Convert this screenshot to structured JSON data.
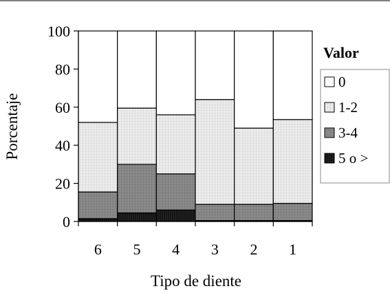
{
  "chart_data": {
    "type": "bar",
    "stacked": true,
    "title": "",
    "xlabel": "Tipo de diente",
    "ylabel": "Porcentaje",
    "categories": [
      "6",
      "5",
      "4",
      "3",
      "2",
      "1"
    ],
    "ylim": [
      0,
      100
    ],
    "yticks": [
      "0",
      "20",
      "40",
      "60",
      "80",
      "100"
    ],
    "grid": false,
    "legend": {
      "title": "Valor",
      "position": "right"
    },
    "series": [
      {
        "name": "5 o >",
        "color": "#000000",
        "pattern": "dense-grid",
        "values": [
          1.5,
          4.5,
          6,
          0.5,
          0.5,
          0.5
        ]
      },
      {
        "name": "3-4",
        "color": "#808080",
        "pattern": "grid",
        "values": [
          14,
          25.5,
          19,
          8.5,
          8.5,
          9
        ]
      },
      {
        "name": "1-2",
        "color": "#e6e6e6",
        "pattern": "grid",
        "values": [
          36.5,
          29.5,
          31,
          55,
          40,
          44
        ]
      },
      {
        "name": "0",
        "color": "#ffffff",
        "pattern": "none",
        "values": [
          48,
          40.5,
          44,
          36,
          51,
          46.5
        ]
      }
    ]
  }
}
